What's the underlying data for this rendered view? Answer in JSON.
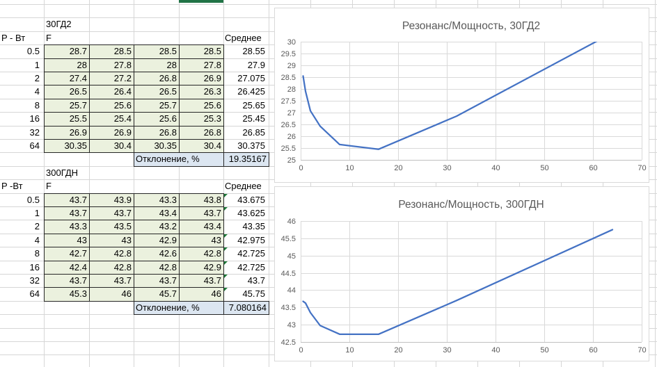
{
  "sheet": {
    "colors": {
      "cell_fill": "#ebf1de",
      "deviation_fill": "#dce6f1",
      "cell_border": "#262626",
      "sheet_gridline": "#d6d6d6",
      "selection_green": "#217346",
      "error_flag_green": "#1e7a38",
      "chart_border": "#d9d9d9",
      "chart_gridline": "#d9d9d9",
      "chart_axis_line": "#bfbfbf",
      "chart_text": "#595959",
      "chart_line_blue": "#4472c4"
    },
    "tables": [
      {
        "title": "30ГД2",
        "power_header": "P - Вт",
        "freq_header": "F",
        "mean_header": "Среднее",
        "rows": [
          {
            "power": "0.5",
            "values": [
              "28.7",
              "28.5",
              "28.5",
              "28.5"
            ],
            "mean": "28.55",
            "error_flag": false
          },
          {
            "power": "1",
            "values": [
              "28",
              "27.8",
              "28",
              "27.8"
            ],
            "mean": "27.9",
            "error_flag": false
          },
          {
            "power": "2",
            "values": [
              "27.4",
              "27.2",
              "26.8",
              "26.9"
            ],
            "mean": "27.075",
            "error_flag": false
          },
          {
            "power": "4",
            "values": [
              "26.5",
              "26.4",
              "26.5",
              "26.3"
            ],
            "mean": "26.425",
            "error_flag": false
          },
          {
            "power": "8",
            "values": [
              "25.7",
              "25.6",
              "25.7",
              "25.6"
            ],
            "mean": "25.65",
            "error_flag": false
          },
          {
            "power": "16",
            "values": [
              "25.5",
              "25.4",
              "25.6",
              "25.3"
            ],
            "mean": "25.45",
            "error_flag": false
          },
          {
            "power": "32",
            "values": [
              "26.9",
              "26.9",
              "26.8",
              "26.8"
            ],
            "mean": "26.85",
            "error_flag": false
          },
          {
            "power": "64",
            "values": [
              "30.35",
              "30.4",
              "30.35",
              "30.4"
            ],
            "mean": "30.375",
            "error_flag": false
          }
        ],
        "deviation": {
          "label": "Отклонение, %",
          "value": "19.35167"
        }
      },
      {
        "title": "300ГДН",
        "power_header": "P -Вт",
        "freq_header": "F",
        "mean_header": "Среднее",
        "rows": [
          {
            "power": "0.5",
            "values": [
              "43.7",
              "43.9",
              "43.3",
              "43.8"
            ],
            "mean": "43.675",
            "error_flag": true
          },
          {
            "power": "1",
            "values": [
              "43.7",
              "43.7",
              "43.4",
              "43.7"
            ],
            "mean": "43.625",
            "error_flag": true
          },
          {
            "power": "2",
            "values": [
              "43.3",
              "43.5",
              "43.2",
              "43.4"
            ],
            "mean": "43.35",
            "error_flag": false
          },
          {
            "power": "4",
            "values": [
              "43",
              "43",
              "42.9",
              "43"
            ],
            "mean": "42.975",
            "error_flag": true
          },
          {
            "power": "8",
            "values": [
              "42.7",
              "42.8",
              "42.6",
              "42.8"
            ],
            "mean": "42.725",
            "error_flag": true
          },
          {
            "power": "16",
            "values": [
              "42.4",
              "42.8",
              "42.8",
              "42.9"
            ],
            "mean": "42.725",
            "error_flag": true
          },
          {
            "power": "32",
            "values": [
              "43.7",
              "43.7",
              "43.7",
              "43.7"
            ],
            "mean": "43.7",
            "error_flag": true
          },
          {
            "power": "64",
            "values": [
              "45.3",
              "46",
              "45.7",
              "46"
            ],
            "mean": "45.75",
            "error_flag": true
          }
        ],
        "deviation": {
          "label": "Отклонение, %",
          "value": "7.080164"
        }
      }
    ]
  },
  "chart_data": [
    {
      "type": "line",
      "title": "Резонанс/Мощность, 30ГД2",
      "x": [
        0.5,
        1,
        2,
        4,
        8,
        16,
        32,
        64
      ],
      "series": [
        {
          "name": "Среднее",
          "values": [
            28.55,
            27.9,
            27.075,
            26.425,
            25.65,
            25.45,
            26.85,
            30.375
          ]
        }
      ],
      "xlim": [
        0,
        70
      ],
      "ylim": [
        25,
        30
      ],
      "xtick_step": 10,
      "ytick_step": 0.5,
      "x_ticks": [
        "0",
        "10",
        "20",
        "30",
        "40",
        "50",
        "60",
        "70"
      ],
      "y_ticks": [
        "25",
        "25.5",
        "26",
        "26.5",
        "27",
        "27.5",
        "28",
        "28.5",
        "29",
        "29.5",
        "30"
      ],
      "xlabel": "",
      "ylabel": "",
      "grid": true,
      "legend_position": "none",
      "line_color": "#4472c4",
      "clip_to_plot": true
    },
    {
      "type": "line",
      "title": "Резонанс/Мощность, 300ГДН",
      "x": [
        0.5,
        1,
        2,
        4,
        8,
        16,
        32,
        64
      ],
      "series": [
        {
          "name": "Среднее",
          "values": [
            43.675,
            43.625,
            43.35,
            42.975,
            42.725,
            42.725,
            43.7,
            45.75
          ]
        }
      ],
      "xlim": [
        0,
        70
      ],
      "ylim": [
        42.5,
        46
      ],
      "xtick_step": 10,
      "ytick_step": 0.5,
      "x_ticks": [
        "0",
        "10",
        "20",
        "30",
        "40",
        "50",
        "60",
        "70"
      ],
      "y_ticks": [
        "42.5",
        "43",
        "43.5",
        "44",
        "44.5",
        "45",
        "45.5",
        "46"
      ],
      "xlabel": "",
      "ylabel": "",
      "grid": true,
      "legend_position": "none",
      "line_color": "#4472c4",
      "clip_to_plot": true
    }
  ]
}
